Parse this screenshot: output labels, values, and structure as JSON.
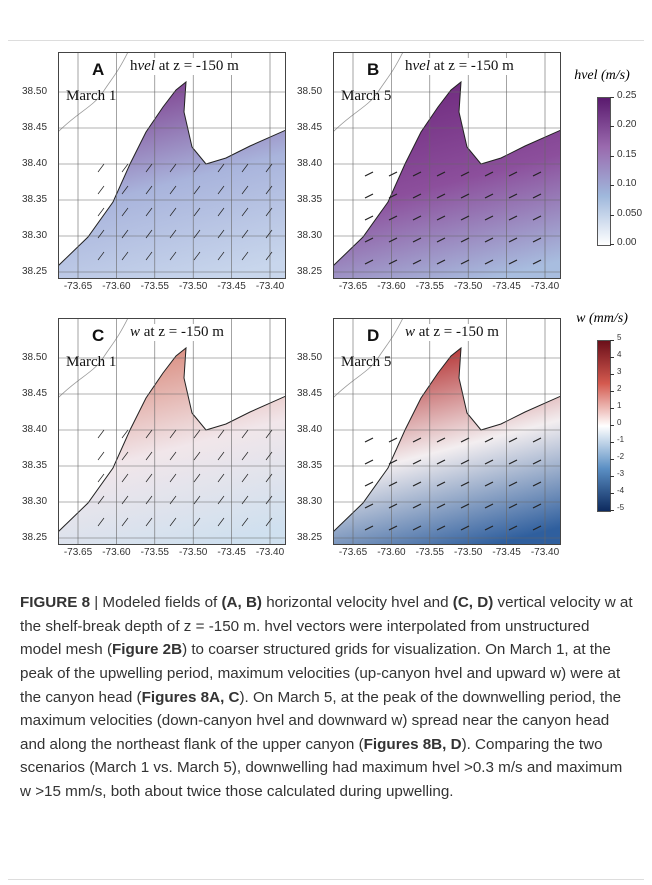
{
  "panels": [
    {
      "letter": "A",
      "title_prefix": "h",
      "title_italic": "vel",
      "title_suffix": " at z = -150 m",
      "date": "March 1"
    },
    {
      "letter": "B",
      "title_prefix": "h",
      "title_italic": "vel",
      "title_suffix": " at z = -150 m",
      "date": "March 5"
    },
    {
      "letter": "C",
      "title_prefix": "",
      "title_italic": "w",
      "title_suffix": " at z = -150 m",
      "date": "March 1"
    },
    {
      "letter": "D",
      "title_prefix": "",
      "title_italic": "w",
      "title_suffix": " at z = -150 m",
      "date": "March 5"
    }
  ],
  "yticks": [
    "38.50",
    "38.45",
    "38.40",
    "38.35",
    "38.30",
    "38.25"
  ],
  "xticks": [
    "-73.65",
    "-73.60",
    "-73.55",
    "-73.50",
    "-73.45",
    "-73.40"
  ],
  "colorbars": [
    {
      "title": "hvel (m/s)",
      "labels": [
        "0.25",
        "0.20",
        "0.15",
        "0.10",
        "0.050",
        "0.00"
      ]
    },
    {
      "title": "w (mm/s)",
      "labels": [
        "5",
        "4",
        "3",
        "2",
        "1",
        "0",
        "-1",
        "-2",
        "-3",
        "-4",
        "-5"
      ]
    }
  ],
  "caption": [
    {
      "text": "FIGURE 8",
      "bold": true
    },
    {
      "text": " | Modeled fields of ",
      "bold": false
    },
    {
      "text": "(A, B)",
      "bold": true
    },
    {
      "text": " horizontal velocity hvel and ",
      "bold": false
    },
    {
      "text": "(C, D)",
      "bold": true
    },
    {
      "text": " vertical velocity w at the shelf-break depth of z = -150 m. hvel vectors were interpolated from unstructured model mesh (",
      "bold": false
    },
    {
      "text": "Figure 2B",
      "bold": true
    },
    {
      "text": ") to coarser structured grids for visualization. On March 1, at the peak of the upwelling period, maximum velocities (up-canyon hvel and upward w) were at the canyon head (",
      "bold": false
    },
    {
      "text": "Figures 8A, C",
      "bold": true
    },
    {
      "text": "). On March 5, at the peak of the downwelling period, the maximum velocities (down-canyon hvel and downward w) spread near the canyon head and along the northeast flank of the upper canyon (",
      "bold": false
    },
    {
      "text": "Figures 8B, D",
      "bold": true
    },
    {
      "text": "). Comparing the two scenarios (March 1 vs. March 5), downwelling had maximum hvel >0.3 m/s and maximum w >15 mm/s, both about twice those calculated during upwelling.",
      "bold": false
    }
  ]
}
